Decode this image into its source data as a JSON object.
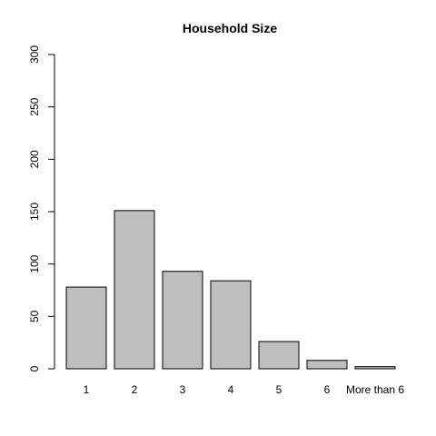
{
  "chart_data": {
    "type": "bar",
    "title": "Household Size",
    "xlabel": "",
    "ylabel": "",
    "categories": [
      "1",
      "2",
      "3",
      "4",
      "5",
      "6",
      "More than 6"
    ],
    "values": [
      78,
      151,
      93,
      84,
      26,
      8,
      2
    ],
    "ylim": [
      0,
      300
    ],
    "yticks": [
      0,
      50,
      100,
      150,
      200,
      250,
      300
    ],
    "grid": false,
    "legend": "none",
    "colors": {
      "bar_fill": "#bebebe",
      "bar_stroke": "#000000",
      "background": "#ffffff"
    }
  }
}
